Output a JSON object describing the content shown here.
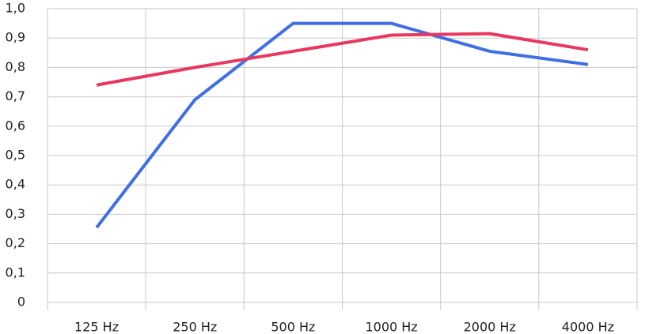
{
  "chart_data": {
    "type": "line",
    "categories": [
      "125 Hz",
      "250 Hz",
      "500 Hz",
      "1000 Hz",
      "2000 Hz",
      "4000 Hz"
    ],
    "series": [
      {
        "color": "#3f6fe3",
        "values": [
          0.255,
          0.69,
          0.95,
          0.95,
          0.855,
          0.81
        ]
      },
      {
        "color": "#e8385f",
        "values": [
          0.74,
          0.8,
          0.855,
          0.91,
          0.915,
          0.86
        ]
      }
    ],
    "ylim": [
      0,
      1.0
    ],
    "yticks": [
      0,
      {
        "value": 0.1,
        "label": "0,1"
      },
      {
        "value": 0.2,
        "label": "0,2"
      },
      {
        "value": 0.3,
        "label": "0,3"
      },
      {
        "value": 0.4,
        "label": "0,4"
      },
      {
        "value": 0.5,
        "label": "0,5"
      },
      {
        "value": 0.6,
        "label": "0,6"
      },
      {
        "value": 0.7,
        "label": "0,7"
      },
      {
        "value": 0.8,
        "label": "0,8"
      },
      {
        "value": 0.9,
        "label": "0,9"
      },
      {
        "value": 1.0,
        "label": "1,0"
      }
    ],
    "grid": true
  }
}
